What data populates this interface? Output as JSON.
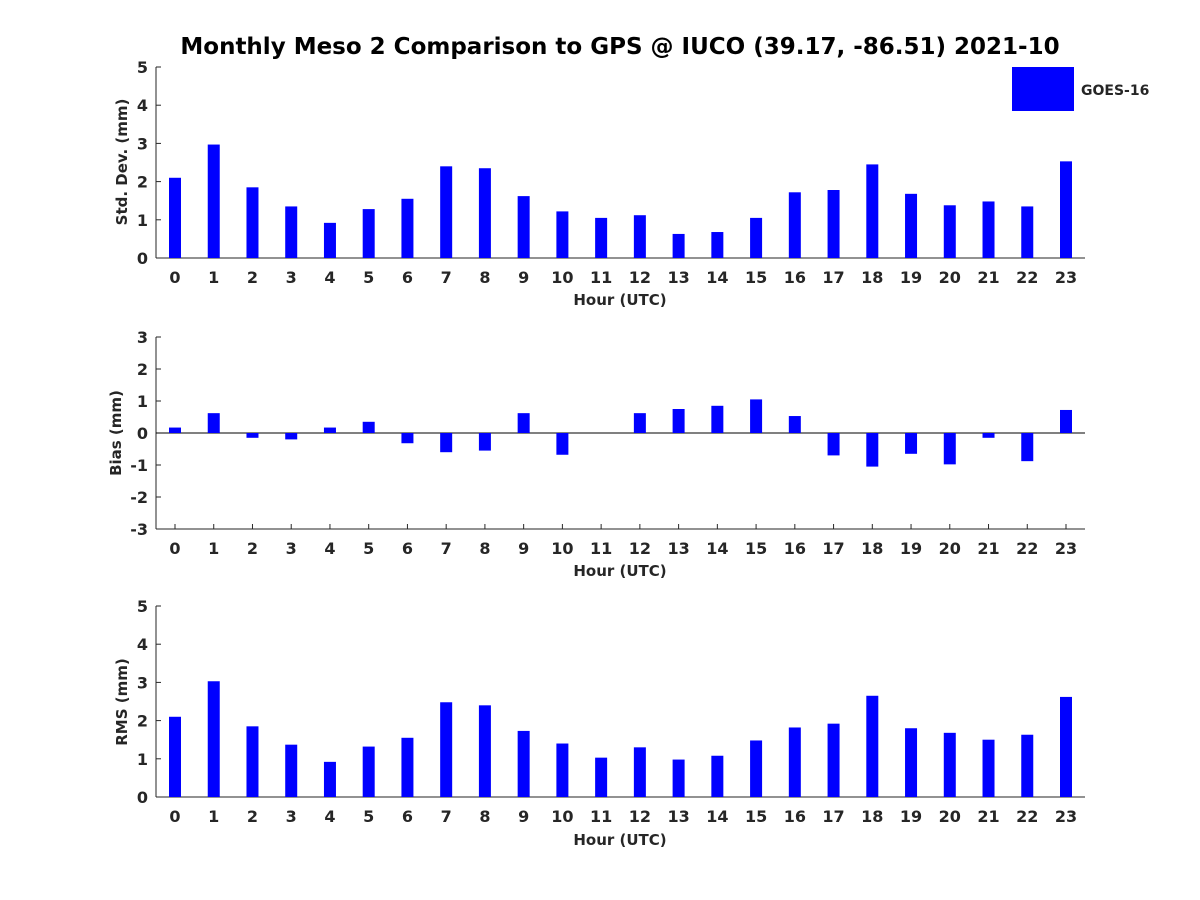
{
  "title": "Monthly Meso 2 Comparison to GPS @ IUCO (39.17, -86.51) 2021-10",
  "legend": {
    "label": "GOES-16",
    "placement": "top-right"
  },
  "colors": {
    "bar": "#0000ff",
    "axis": "#262626",
    "text": "#262626"
  },
  "chart_data": [
    {
      "type": "bar",
      "ylabel": "Std. Dev. (mm)",
      "xlabel": "Hour (UTC)",
      "ylim": [
        0,
        5
      ],
      "yticks": [
        "0",
        "1",
        "2",
        "3",
        "4",
        "5"
      ],
      "categories": [
        "0",
        "1",
        "2",
        "3",
        "4",
        "5",
        "6",
        "7",
        "8",
        "9",
        "10",
        "11",
        "12",
        "13",
        "14",
        "15",
        "16",
        "17",
        "18",
        "19",
        "20",
        "21",
        "22",
        "23"
      ],
      "series": [
        {
          "name": "GOES-16",
          "values": [
            2.1,
            2.97,
            1.85,
            1.35,
            0.92,
            1.28,
            1.55,
            2.4,
            2.35,
            1.62,
            1.22,
            1.05,
            1.12,
            0.63,
            0.68,
            1.05,
            1.72,
            1.78,
            2.45,
            1.68,
            1.38,
            1.48,
            1.35,
            2.53
          ]
        }
      ],
      "grid": false
    },
    {
      "type": "bar",
      "ylabel": "Bias (mm)",
      "xlabel": "Hour (UTC)",
      "ylim": [
        -3,
        3
      ],
      "yticks": [
        "-3",
        "-2",
        "-1",
        "0",
        "1",
        "2",
        "3"
      ],
      "categories": [
        "0",
        "1",
        "2",
        "3",
        "4",
        "5",
        "6",
        "7",
        "8",
        "9",
        "10",
        "11",
        "12",
        "13",
        "14",
        "15",
        "16",
        "17",
        "18",
        "19",
        "20",
        "21",
        "22",
        "23"
      ],
      "series": [
        {
          "name": "GOES-16",
          "values": [
            0.17,
            0.62,
            -0.15,
            -0.2,
            0.17,
            0.35,
            -0.32,
            -0.6,
            -0.55,
            0.62,
            -0.68,
            0.0,
            0.62,
            0.75,
            0.85,
            1.05,
            0.53,
            -0.7,
            -1.05,
            -0.65,
            -0.98,
            -0.15,
            -0.88,
            0.72
          ]
        }
      ],
      "zero_line": true,
      "grid": false
    },
    {
      "type": "bar",
      "ylabel": "RMS (mm)",
      "xlabel": "Hour (UTC)",
      "ylim": [
        0,
        5
      ],
      "yticks": [
        "0",
        "1",
        "2",
        "3",
        "4",
        "5"
      ],
      "categories": [
        "0",
        "1",
        "2",
        "3",
        "4",
        "5",
        "6",
        "7",
        "8",
        "9",
        "10",
        "11",
        "12",
        "13",
        "14",
        "15",
        "16",
        "17",
        "18",
        "19",
        "20",
        "21",
        "22",
        "23"
      ],
      "series": [
        {
          "name": "GOES-16",
          "values": [
            2.1,
            3.03,
            1.85,
            1.37,
            0.92,
            1.32,
            1.55,
            2.48,
            2.4,
            1.73,
            1.4,
            1.03,
            1.3,
            0.98,
            1.08,
            1.48,
            1.82,
            1.92,
            2.65,
            1.8,
            1.68,
            1.5,
            1.63,
            2.62
          ]
        }
      ],
      "grid": false
    }
  ]
}
